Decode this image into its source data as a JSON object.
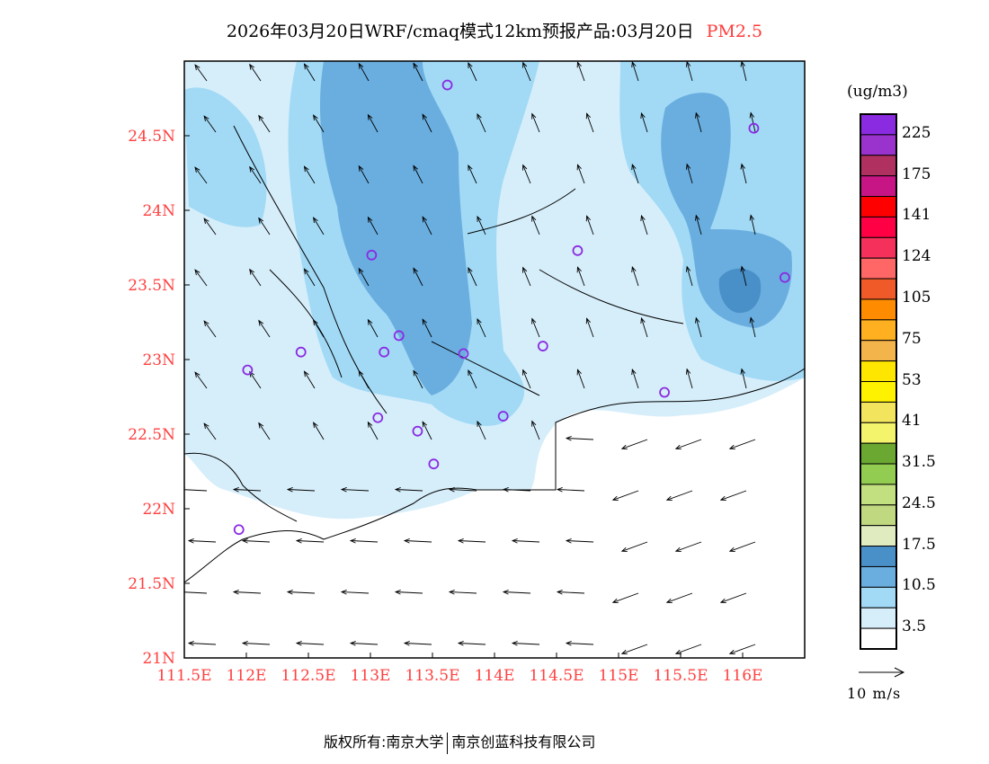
{
  "title": {
    "text": "2026年03月20日WRF/cmaq模式12km预报产品:03月20日",
    "variable": "PM2.5"
  },
  "chart_data": {
    "type": "heatmap",
    "title": "2026年03月20日WRF/cmaq模式12km预报产品:03月20日 PM2.5",
    "xlim": [
      111.5,
      116.5
    ],
    "ylim": [
      21.0,
      25.0
    ],
    "x_ticks": [
      {
        "value": 111.5,
        "label": "111.5E"
      },
      {
        "value": 112,
        "label": "112E"
      },
      {
        "value": 112.5,
        "label": "112.5E"
      },
      {
        "value": 113,
        "label": "113E"
      },
      {
        "value": 113.5,
        "label": "113.5E"
      },
      {
        "value": 114,
        "label": "114E"
      },
      {
        "value": 114.5,
        "label": "114.5E"
      },
      {
        "value": 115,
        "label": "115E"
      },
      {
        "value": 115.5,
        "label": "115.5E"
      },
      {
        "value": 116,
        "label": "116E"
      }
    ],
    "y_ticks": [
      {
        "value": 21,
        "label": "21N"
      },
      {
        "value": 21.5,
        "label": "21.5N"
      },
      {
        "value": 22,
        "label": "22N"
      },
      {
        "value": 22.5,
        "label": "22.5N"
      },
      {
        "value": 23,
        "label": "23N"
      },
      {
        "value": 23.5,
        "label": "23.5N"
      },
      {
        "value": 24,
        "label": "24N"
      },
      {
        "value": 24.5,
        "label": "24.5N"
      }
    ],
    "colorbar": {
      "unit": "(ug/m3)",
      "labels": [
        "225",
        "175",
        "141",
        "124",
        "105",
        "75",
        "53",
        "41",
        "31.5",
        "24.5",
        "17.5",
        "10.5",
        "3.5"
      ],
      "colors": [
        "#8a2be2",
        "#9a32cd",
        "#b03060",
        "#c71585",
        "#ff0000",
        "#ff0044",
        "#f5305a",
        "#ff6666",
        "#f05a28",
        "#ff8c00",
        "#ffb020",
        "#f4b44c",
        "#ffe600",
        "#fff200",
        "#f2e45c",
        "#f4f46c",
        "#6aa832",
        "#92cc50",
        "#c2e080",
        "#c0d880",
        "#e0ecc0",
        "#4a90c8",
        "#6aaee0",
        "#a2daf6",
        "#d6eefa",
        "#ffffff"
      ]
    },
    "wind_reference": {
      "value": 10,
      "label": "10 m/s"
    },
    "stations": [
      [
        113.62,
        24.84
      ],
      [
        116.09,
        24.55
      ],
      [
        113.01,
        23.7
      ],
      [
        114.67,
        23.73
      ],
      [
        116.34,
        23.55
      ],
      [
        113.23,
        23.16
      ],
      [
        113.11,
        23.05
      ],
      [
        112.44,
        23.05
      ],
      [
        113.75,
        23.04
      ],
      [
        114.39,
        23.09
      ],
      [
        112.01,
        22.93
      ],
      [
        115.37,
        22.78
      ],
      [
        113.06,
        22.61
      ],
      [
        114.07,
        22.62
      ],
      [
        113.38,
        22.52
      ],
      [
        113.51,
        22.3
      ],
      [
        111.94,
        21.86
      ]
    ]
  },
  "footer": {
    "left": "版权所有:南京大学",
    "right": "南京创蓝科技有限公司"
  }
}
